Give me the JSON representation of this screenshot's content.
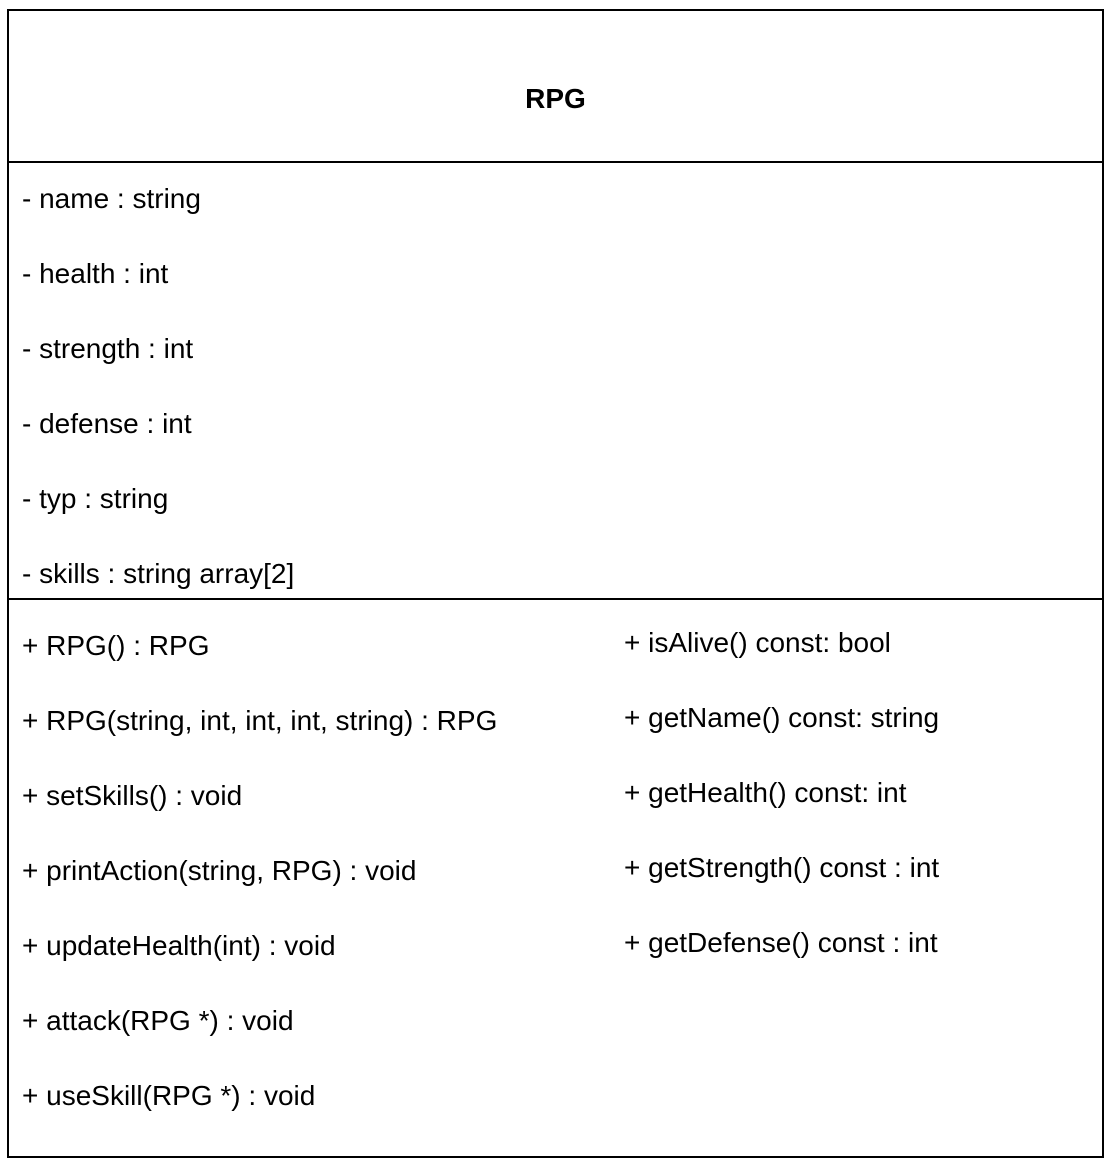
{
  "class": {
    "name": "RPG",
    "attributes": [
      "- name : string",
      "- health : int",
      "- strength : int",
      "- defense : int",
      "- typ : string",
      "- skills : string array[2]"
    ],
    "methods_left": [
      "+ RPG() : RPG",
      "+ RPG(string, int, int, int, string) : RPG",
      "+ setSkills() : void",
      "+ printAction(string, RPG) : void",
      "+ updateHealth(int) : void",
      "+ attack(RPG *) : void",
      "+ useSkill(RPG *) : void"
    ],
    "methods_right": [
      "+ isAlive() const: bool",
      "+ getName() const: string",
      "+ getHealth() const: int",
      "+ getStrength() const : int",
      "+ getDefense() const : int"
    ]
  }
}
